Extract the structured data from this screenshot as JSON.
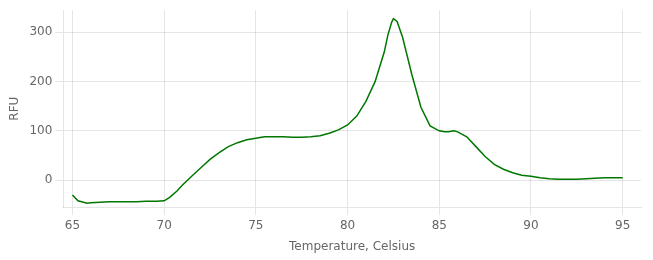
{
  "chart_data": {
    "type": "line",
    "xlabel": "Temperature, Celsius",
    "ylabel": "RFU",
    "color": "#007700",
    "xlim": [
      64.5,
      96.0
    ],
    "ylim": [
      -55,
      345
    ],
    "xticks": [
      65,
      70,
      75,
      80,
      85,
      90,
      95
    ],
    "yticks": [
      0,
      100,
      200,
      300
    ],
    "grid": true,
    "x": [
      65.0,
      65.3,
      65.8,
      66.0,
      66.5,
      67.0,
      67.5,
      68.0,
      68.5,
      69.0,
      69.3,
      69.6,
      70.0,
      70.3,
      70.7,
      71.0,
      71.5,
      72.0,
      72.5,
      73.0,
      73.5,
      74.0,
      74.5,
      75.0,
      75.3,
      75.5,
      76.0,
      76.5,
      77.0,
      77.5,
      78.0,
      78.5,
      79.0,
      79.5,
      80.0,
      80.5,
      81.0,
      81.5,
      82.0,
      82.2,
      82.4,
      82.5,
      82.7,
      83.0,
      83.5,
      84.0,
      84.5,
      85.0,
      85.3,
      85.5,
      85.8,
      86.0,
      86.5,
      87.0,
      87.5,
      88.0,
      88.5,
      89.0,
      89.5,
      90.0,
      90.5,
      91.0,
      91.5,
      92.0,
      92.5,
      93.0,
      93.5,
      94.0,
      94.5,
      95.0
    ],
    "values": [
      -30,
      -42,
      -47,
      -46,
      -45,
      -44,
      -44,
      -44,
      -44,
      -43,
      -43,
      -43,
      -42,
      -35,
      -22,
      -10,
      8,
      25,
      42,
      56,
      68,
      76,
      82,
      85,
      87,
      88,
      88,
      88,
      87,
      87,
      88,
      90,
      95,
      102,
      112,
      130,
      160,
      200,
      260,
      295,
      320,
      328,
      322,
      290,
      215,
      148,
      110,
      100,
      98,
      98,
      100,
      98,
      88,
      68,
      48,
      32,
      22,
      15,
      10,
      8,
      5,
      3,
      2,
      2,
      2,
      3,
      4,
      5,
      5,
      5
    ]
  }
}
